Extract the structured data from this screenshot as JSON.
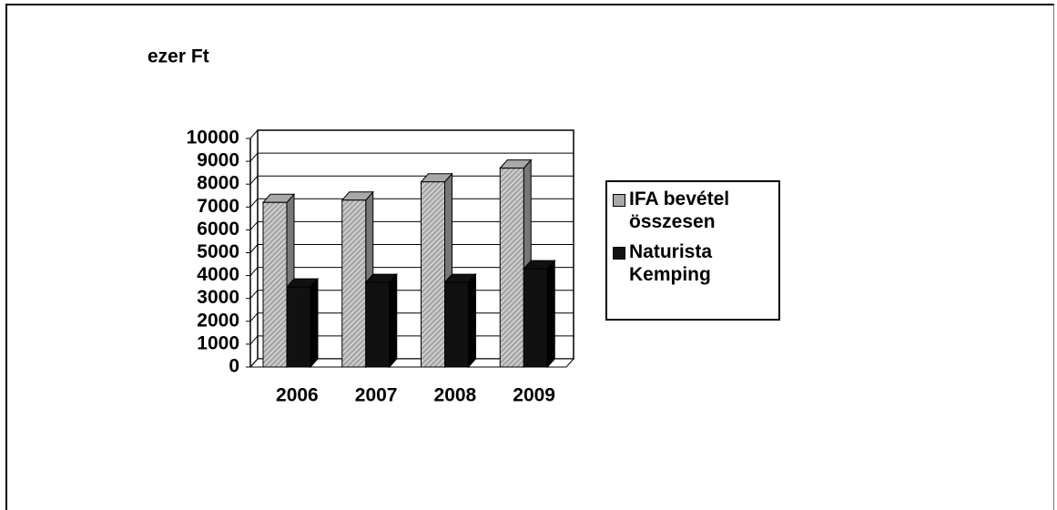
{
  "chart_data": {
    "type": "bar3d",
    "title": "ezer Ft",
    "categories": [
      "2006",
      "2007",
      "2008",
      "2009"
    ],
    "series": [
      {
        "name": "IFA bevétel összesen",
        "color": "#a8a8a8",
        "values": [
          7200,
          7300,
          8100,
          8700
        ]
      },
      {
        "name": "Naturista Kemping",
        "color": "#111111",
        "values": [
          3500,
          3700,
          3700,
          4300
        ]
      }
    ],
    "ylim": [
      0,
      10000
    ],
    "yticks": [
      0,
      1000,
      2000,
      3000,
      4000,
      5000,
      6000,
      7000,
      8000,
      9000,
      10000
    ],
    "grid": true,
    "legend": "right"
  }
}
